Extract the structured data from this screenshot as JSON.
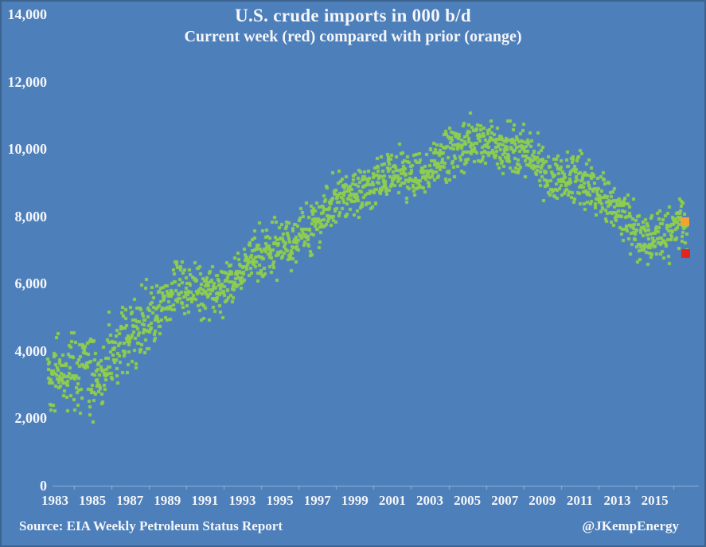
{
  "header": {
    "title": "U.S. crude imports in 000 b/d",
    "subtitle": "Current week (red) compared with prior (orange)"
  },
  "footer": {
    "source": "Source: EIA Weekly Petroleum Status Report",
    "credit": "@JKempEnergy"
  },
  "colors": {
    "background": "#4d7fba",
    "border": "#3c648f",
    "text": "#f4f6fa",
    "dot_green": "#8ecd4f",
    "prior_orange": "#f7a131",
    "current_red": "#e5251c",
    "axis_line": "rgba(222,227,235,0.5)"
  },
  "chart_data": {
    "type": "scatter",
    "title": "U.S. crude imports in 000 b/d",
    "subtitle": "Current week (red) compared with prior (orange)",
    "xlabel": "",
    "ylabel": "",
    "grid": false,
    "legend_position": "none (legend text is in subtitle)",
    "xlim": [
      1982.5,
      2017.3
    ],
    "ylim": [
      0,
      14000
    ],
    "yticks": [
      [
        0,
        "0"
      ],
      [
        2000,
        "2,000"
      ],
      [
        4000,
        "4,000"
      ],
      [
        6000,
        "6,000"
      ],
      [
        8000,
        "8,000"
      ],
      [
        10000,
        "10,000"
      ],
      [
        12000,
        "12,000"
      ],
      [
        14000,
        "14,000"
      ]
    ],
    "xticks": [
      [
        1983,
        "1983"
      ],
      [
        1985,
        "1985"
      ],
      [
        1987,
        "1987"
      ],
      [
        1989,
        "1989"
      ],
      [
        1991,
        "1991"
      ],
      [
        1993,
        "1993"
      ],
      [
        1995,
        "1995"
      ],
      [
        1997,
        "1997"
      ],
      [
        1999,
        "1999"
      ],
      [
        2001,
        "2001"
      ],
      [
        2003,
        "2003"
      ],
      [
        2005,
        "2005"
      ],
      [
        2007,
        "2007"
      ],
      [
        2009,
        "2009"
      ],
      [
        2011,
        "2011"
      ],
      [
        2013,
        "2013"
      ],
      [
        2015,
        "2015"
      ]
    ],
    "series": [
      {
        "name": "weekly-crude-imports-green",
        "description": "Weekly U.S. crude imports, 000 b/d, scattered green squares; values estimated from chart via annual mean trend plus weekly noise",
        "color_key": "dot_green",
        "marker_px": 4,
        "start_year": 1982.62,
        "end_year": 2016.75,
        "points_per_year": 52,
        "trend_annual_means": [
          [
            1983,
            3329
          ],
          [
            1984,
            3426
          ],
          [
            1985,
            3201
          ],
          [
            1986,
            4178
          ],
          [
            1987,
            4674
          ],
          [
            1988,
            5107
          ],
          [
            1989,
            5843
          ],
          [
            1990,
            5894
          ],
          [
            1991,
            5782
          ],
          [
            1992,
            6083
          ],
          [
            1993,
            6787
          ],
          [
            1994,
            7063
          ],
          [
            1995,
            7230
          ],
          [
            1996,
            7508
          ],
          [
            1997,
            8225
          ],
          [
            1998,
            8706
          ],
          [
            1999,
            8731
          ],
          [
            2000,
            9071
          ],
          [
            2001,
            9328
          ],
          [
            2002,
            9140
          ],
          [
            2003,
            9665
          ],
          [
            2004,
            10088
          ],
          [
            2005,
            10126
          ],
          [
            2006,
            10118
          ],
          [
            2007,
            10031
          ],
          [
            2008,
            9783
          ],
          [
            2009,
            9013
          ],
          [
            2010,
            9213
          ],
          [
            2011,
            8935
          ],
          [
            2012,
            8527
          ],
          [
            2013,
            7730
          ],
          [
            2014,
            7344
          ],
          [
            2015,
            7351
          ],
          [
            2016,
            7900
          ]
        ],
        "observed_max": 11300,
        "observed_min": 1650,
        "noise_half_range": 1100,
        "early_years_noise": {
          "until_year": 1988.5,
          "multiplier": 1.5
        },
        "seed": 42
      },
      {
        "name": "prior-week-orange",
        "label": "prior (orange)",
        "year": 2016.63,
        "value": 7850,
        "color_key": "prior_orange",
        "marker_px": 11
      },
      {
        "name": "current-week-red",
        "label": "current week (red)",
        "year": 2016.67,
        "value": 6900,
        "color_key": "current_red",
        "marker_px": 11
      }
    ]
  }
}
